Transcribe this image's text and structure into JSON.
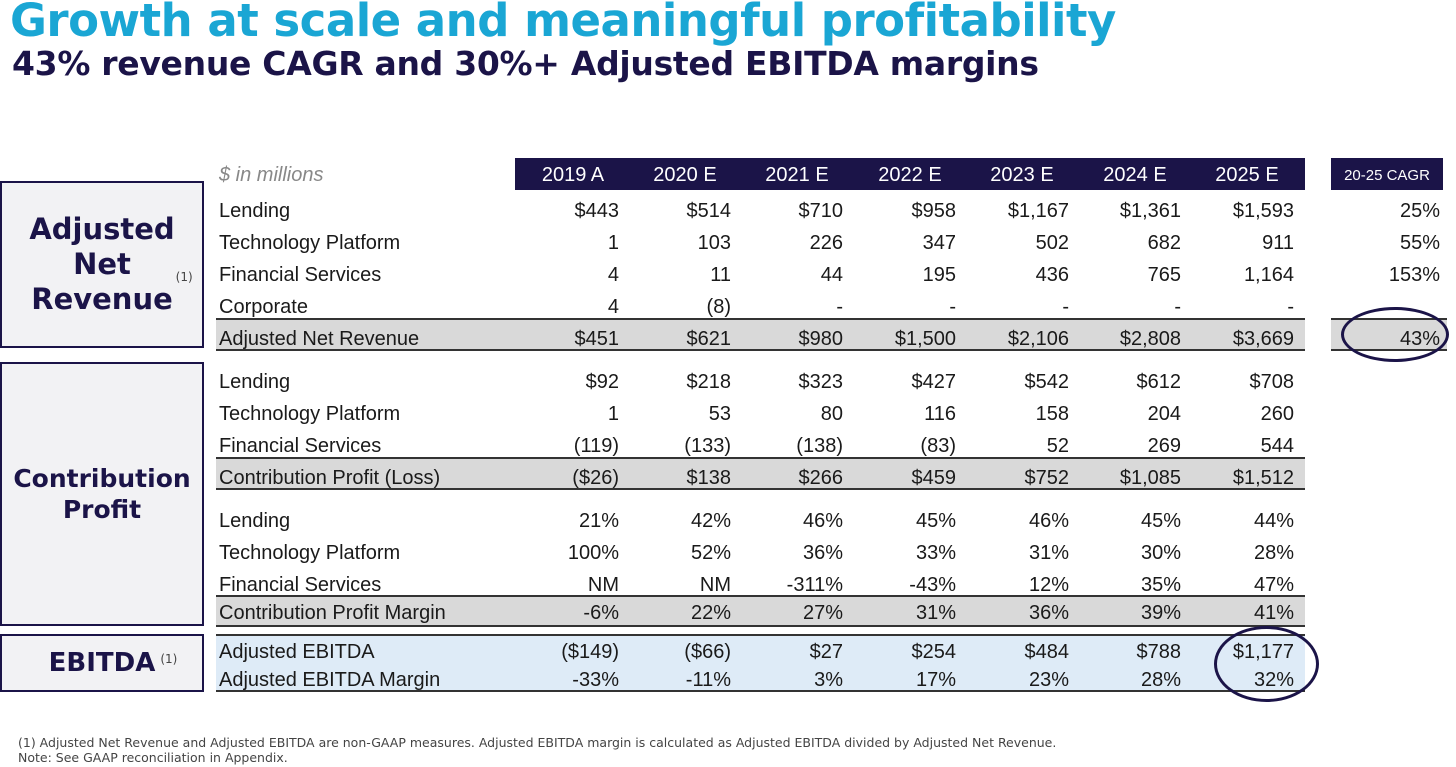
{
  "title": "Growth at scale and meaningful profitability",
  "subtitle": "43% revenue CAGR and 30%+ Adjusted EBITDA margins",
  "unit_label": "$ in millions",
  "years": [
    "2019 A",
    "2020 E",
    "2021 E",
    "2022 E",
    "2023 E",
    "2024 E",
    "2025 E"
  ],
  "cagr_header": "20-25 CAGR",
  "sections": {
    "revenue": {
      "line1": "Adjusted",
      "line2": "Net",
      "line3": "Revenue",
      "sup": "(1)"
    },
    "contribution": {
      "line1": "Contribution",
      "line2": "Profit"
    },
    "ebitda": {
      "line1": "EBITDA",
      "sup": "(1)"
    }
  },
  "rows": [
    {
      "label": "Lending",
      "values": [
        "$443",
        "$514",
        "$710",
        "$958",
        "$1,167",
        "$1,361",
        "$1,593"
      ],
      "cagr": "25%"
    },
    {
      "label": "Technology Platform",
      "values": [
        "1",
        "103",
        "226",
        "347",
        "502",
        "682",
        "911"
      ],
      "cagr": "55%"
    },
    {
      "label": "Financial Services",
      "values": [
        "4",
        "11",
        "44",
        "195",
        "436",
        "765",
        "1,164"
      ],
      "cagr": "153%"
    },
    {
      "label": "Corporate",
      "values": [
        "4",
        "(8)",
        "-",
        "-",
        "-",
        "-",
        "-"
      ],
      "cagr": ""
    },
    {
      "label": "Adjusted Net Revenue",
      "values": [
        "$451",
        "$621",
        "$980",
        "$1,500",
        "$2,106",
        "$2,808",
        "$3,669"
      ],
      "cagr": "43%"
    },
    {
      "label": "Lending",
      "values": [
        "$92",
        "$218",
        "$323",
        "$427",
        "$542",
        "$612",
        "$708"
      ],
      "cagr": ""
    },
    {
      "label": "Technology Platform",
      "values": [
        "1",
        "53",
        "80",
        "116",
        "158",
        "204",
        "260"
      ],
      "cagr": ""
    },
    {
      "label": "Financial Services",
      "values": [
        "(119)",
        "(133)",
        "(138)",
        "(83)",
        "52",
        "269",
        "544"
      ],
      "cagr": ""
    },
    {
      "label": "Contribution Profit (Loss)",
      "values": [
        "($26)",
        "$138",
        "$266",
        "$459",
        "$752",
        "$1,085",
        "$1,512"
      ],
      "cagr": ""
    },
    {
      "label": "Lending",
      "values": [
        "21%",
        "42%",
        "46%",
        "45%",
        "46%",
        "45%",
        "44%"
      ],
      "cagr": ""
    },
    {
      "label": "Technology Platform",
      "values": [
        "100%",
        "52%",
        "36%",
        "33%",
        "31%",
        "30%",
        "28%"
      ],
      "cagr": ""
    },
    {
      "label": "Financial Services",
      "values": [
        "NM",
        "NM",
        "-311%",
        "-43%",
        "12%",
        "35%",
        "47%"
      ],
      "cagr": ""
    },
    {
      "label": "Contribution Profit Margin",
      "values": [
        "-6%",
        "22%",
        "27%",
        "31%",
        "36%",
        "39%",
        "41%"
      ],
      "cagr": ""
    },
    {
      "label": "Adjusted EBITDA",
      "values": [
        "($149)",
        "($66)",
        "$27",
        "$254",
        "$484",
        "$788",
        "$1,177"
      ],
      "cagr": ""
    },
    {
      "label": "Adjusted EBITDA Margin",
      "values": [
        "-33%",
        "-11%",
        "3%",
        "17%",
        "23%",
        "28%",
        "32%"
      ],
      "cagr": ""
    }
  ],
  "footnotes": [
    "(1) Adjusted Net Revenue and Adjusted EBITDA are non-GAAP measures.  Adjusted EBITDA margin is calculated as Adjusted EBITDA divided by Adjusted Net Revenue.",
    "Note: See GAAP reconciliation in Appendix."
  ],
  "colors": {
    "title": "#1aa6d4",
    "navy": "#1b1448",
    "band_gray": "#d9d9d9",
    "band_blue": "#deebf7"
  }
}
